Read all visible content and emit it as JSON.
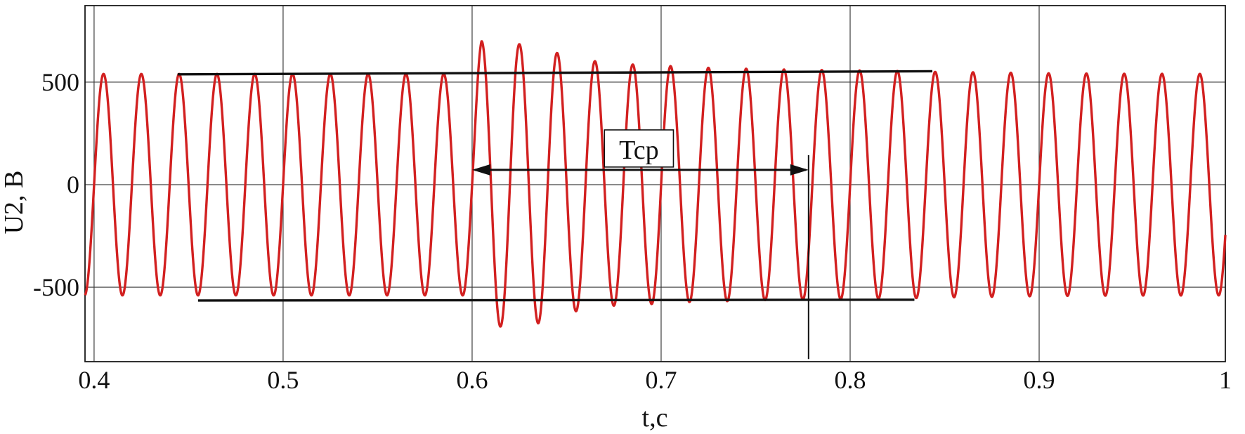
{
  "chart_data": {
    "type": "line",
    "title": "",
    "xlabel": "t,c",
    "ylabel": "U2, B",
    "xlim": [
      0.3952,
      0.9985
    ],
    "ylim": [
      -863,
      873
    ],
    "x_ticks": [
      0.4,
      0.5,
      0.6,
      0.7,
      0.8,
      0.9,
      1.0
    ],
    "x_tick_labels": [
      "0.4",
      "0.5",
      "0.6",
      "0.7",
      "0.8",
      "0.9",
      "1"
    ],
    "y_ticks": [
      500,
      0,
      -500
    ],
    "y_tick_labels": [
      "500",
      "0",
      "-500"
    ],
    "grid": true,
    "colors": {
      "series": "#d22020",
      "grid": "#3a3a3a",
      "frame": "#1a1a1a",
      "annotation": "#111111",
      "background": "#ffffff"
    },
    "series": [
      {
        "name": "U2",
        "model": "amplitude_modulated_sine",
        "frequency_hz": 50,
        "phase_zero_crossing_t": 0.4,
        "base_amplitude_V": 540,
        "envelope_points": [
          [
            0.3952,
            540
          ],
          [
            0.6,
            540
          ],
          [
            0.605,
            700
          ],
          [
            0.615,
            692
          ],
          [
            0.625,
            685
          ],
          [
            0.635,
            676
          ],
          [
            0.645,
            642
          ],
          [
            0.655,
            617
          ],
          [
            0.665,
            602
          ],
          [
            0.675,
            590
          ],
          [
            0.685,
            586
          ],
          [
            0.695,
            582
          ],
          [
            0.705,
            578
          ],
          [
            0.715,
            572
          ],
          [
            0.735,
            568
          ],
          [
            0.755,
            563
          ],
          [
            0.775,
            560
          ],
          [
            0.805,
            557
          ],
          [
            0.835,
            553
          ],
          [
            0.845,
            550
          ],
          [
            0.875,
            547
          ],
          [
            0.905,
            543
          ],
          [
            0.945,
            541
          ],
          [
            0.9985,
            540
          ]
        ]
      }
    ],
    "annotations": {
      "upper_envelope_line": {
        "from_t": 0.4442,
        "from_u": 538,
        "to_t": 0.8435,
        "to_u": 553
      },
      "lower_envelope_line": {
        "from_t": 0.455,
        "from_u": -565,
        "to_t": 0.834,
        "to_u": -561
      },
      "period_arrow": {
        "t_start": 0.6,
        "t_end": 0.778,
        "u": 72
      },
      "marker_vline": {
        "t": 0.778,
        "u_top": 144,
        "u_bottom": -850
      },
      "label_box": {
        "text": "Tcp",
        "t_left": 0.67,
        "t_right": 0.7065,
        "u_top": 267,
        "u_bottom": 86
      }
    },
    "legend": {
      "visible": false
    }
  }
}
